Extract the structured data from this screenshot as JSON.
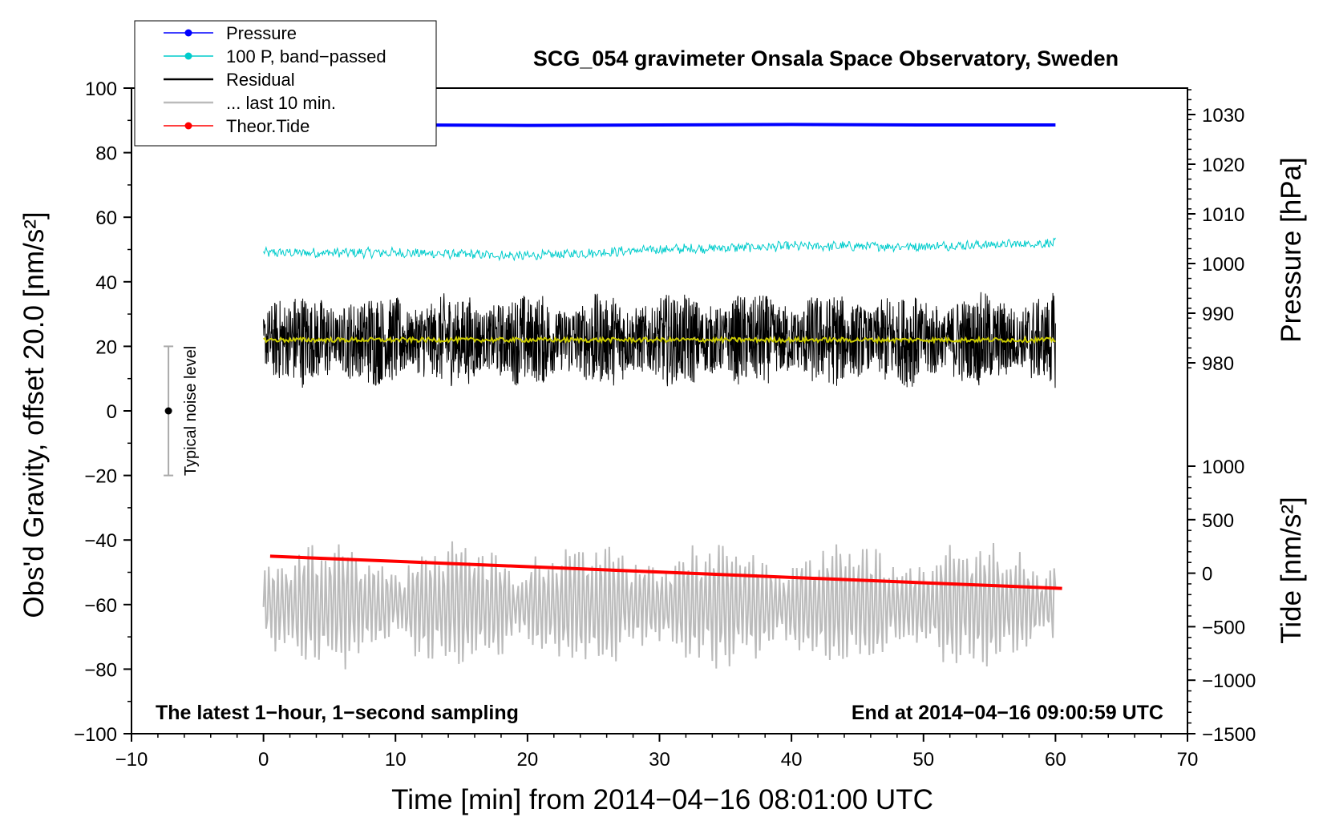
{
  "chart_data": {
    "type": "line",
    "title": "SCG_054 gravimeter Onsala Space Observatory, Sweden",
    "xlabel": "Time [min] from 2014−04−16 08:01:00 UTC",
    "ylabel_left": "Obs'd Gravity, offset 20.0 [nm/s²]",
    "ylabel_right_top": "Pressure [hPa]",
    "ylabel_right_bottom": "Tide [nm/s²]",
    "xlim": [
      -10,
      70
    ],
    "ylim": [
      -100,
      100
    ],
    "pressure_axis_range": [
      975,
      1035
    ],
    "tide_axis_range": [
      -1500,
      1000
    ],
    "x_ticks": [
      "−10",
      "0",
      "10",
      "20",
      "30",
      "40",
      "50",
      "60",
      "70"
    ],
    "x_tick_values": [
      -10,
      0,
      10,
      20,
      30,
      40,
      50,
      60,
      70
    ],
    "y_ticks": [
      "100",
      "80",
      "60",
      "40",
      "20",
      "0",
      "−20",
      "−40",
      "−60",
      "−80",
      "−100"
    ],
    "y_tick_values": [
      100,
      80,
      60,
      40,
      20,
      0,
      -20,
      -40,
      -60,
      -80,
      -100
    ],
    "pressure_ticks": [
      "1030",
      "1020",
      "1010",
      "1000",
      "990",
      "980"
    ],
    "pressure_tick_values": [
      1030,
      1020,
      1010,
      1000,
      990,
      980
    ],
    "tide_ticks": [
      "1000",
      "500",
      "0",
      "−500",
      "−1000",
      "−1500"
    ],
    "tide_tick_values": [
      1000,
      500,
      0,
      -500,
      -1000,
      -1500
    ],
    "footer_left": "The latest 1−hour, 1−second sampling",
    "footer_right": "End at 2014−04−16 09:00:59 UTC",
    "noise_label": "Typical noise level",
    "noise_bar": {
      "x": -7.2,
      "center": 0,
      "low": -20,
      "high": 20
    },
    "legend": [
      {
        "label": "Pressure",
        "color": "#0000ff",
        "marker": true
      },
      {
        "label": "100 P, band−passed",
        "color": "#00cccc",
        "marker": true
      },
      {
        "label": "Residual",
        "color": "#000000",
        "marker": false
      },
      {
        "label": "... last 10 min.",
        "color": "#bbbbbb",
        "marker": false
      },
      {
        "label": "Theor.Tide",
        "color": "#ff0000",
        "marker": true
      }
    ],
    "series": [
      {
        "name": "Pressure",
        "color": "#0000ff",
        "x": [
          0,
          10,
          20,
          30,
          40,
          50,
          60
        ],
        "y_pressure_hPa": [
          1028.0,
          1027.9,
          1027.8,
          1027.9,
          1028.0,
          1027.9,
          1027.9
        ]
      },
      {
        "name": "100 P, band−passed",
        "color": "#00cccc",
        "x": [
          0,
          10,
          20,
          30,
          40,
          50,
          60
        ],
        "y": [
          49,
          49,
          48,
          50,
          51,
          51,
          52
        ]
      },
      {
        "name": "Residual",
        "color": "#000000",
        "x": [
          0,
          10,
          20,
          30,
          40,
          50,
          60
        ],
        "y_center": [
          22,
          22,
          22,
          22,
          22,
          22,
          22
        ],
        "range": [
          0,
          43
        ]
      },
      {
        "name": "Residual smoothed",
        "color": "#cccc00",
        "x": [
          0,
          10,
          20,
          30,
          40,
          50,
          60
        ],
        "y": [
          22,
          22,
          22,
          22,
          22,
          22,
          22
        ]
      },
      {
        "name": "... last 10 min.",
        "color": "#bbbbbb",
        "x": [
          0,
          60
        ],
        "y_center": [
          -60,
          -60
        ],
        "range": [
          -87,
          -40
        ]
      },
      {
        "name": "Theor.Tide",
        "color": "#ff0000",
        "x": [
          0.5,
          60.5
        ],
        "y": [
          -45,
          -55
        ]
      }
    ]
  }
}
